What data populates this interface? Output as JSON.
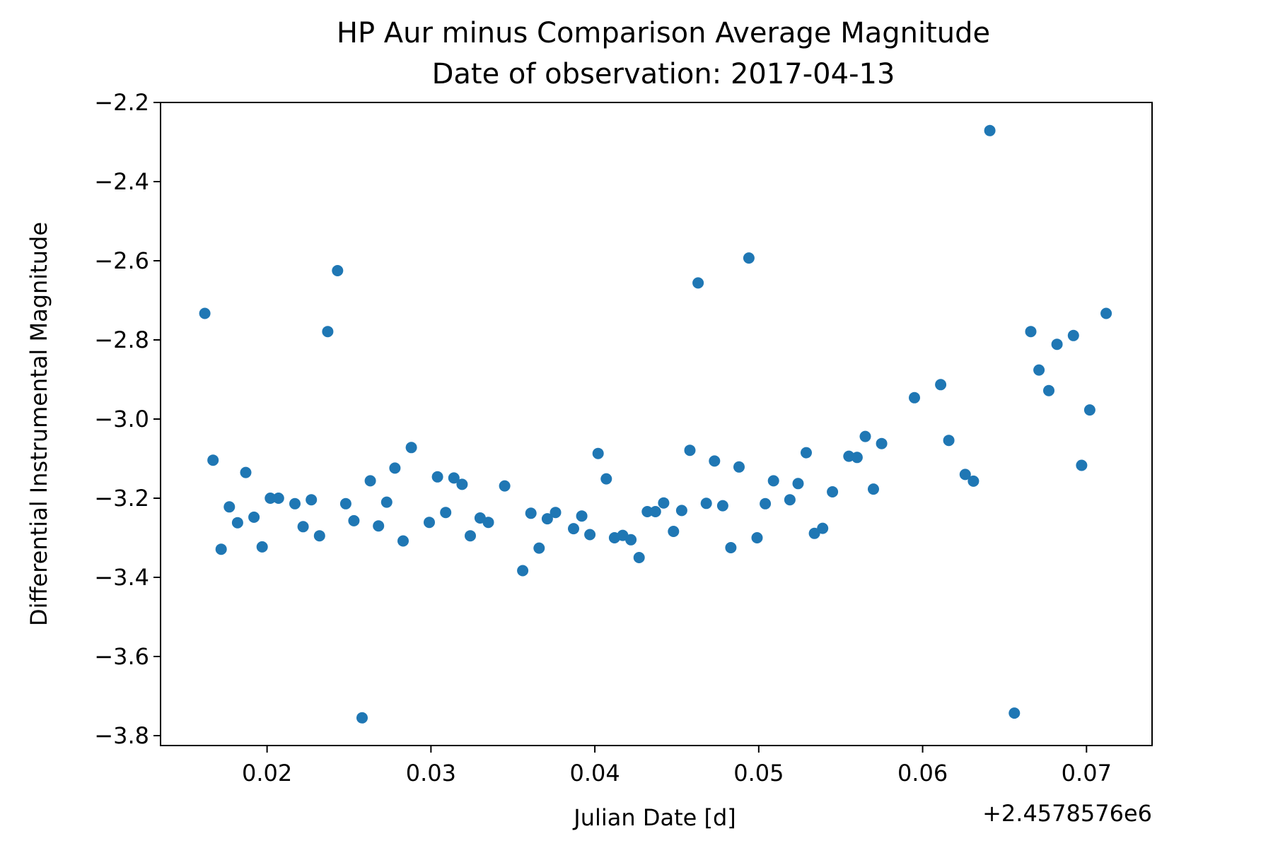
{
  "chart_data": {
    "type": "scatter",
    "title": "HP Aur minus Comparison Average Magnitude",
    "subtitle": "Date of observation: 2017-04-13",
    "xlabel": "Julian Date [d]",
    "ylabel": "Differential Instrumental Magnitude",
    "x_offset_label": "+2.4578576e6",
    "xlim": [
      0.0135,
      0.074
    ],
    "ylim": [
      -3.825,
      -2.2
    ],
    "xticks": [
      0.02,
      0.03,
      0.04,
      0.05,
      0.06,
      0.07
    ],
    "xtick_labels": [
      "0.02",
      "0.03",
      "0.04",
      "0.05",
      "0.06",
      "0.07"
    ],
    "yticks": [
      -2.2,
      -2.4,
      -2.6,
      -2.8,
      -3.0,
      -3.2,
      -3.4,
      -3.6,
      -3.8
    ],
    "ytick_labels": [
      "−2.2",
      "−2.4",
      "−2.6",
      "−2.8",
      "−3.0",
      "−3.2",
      "−3.4",
      "−3.6",
      "−3.8"
    ],
    "grid": false,
    "marker_color": "#1f77b4",
    "points": [
      [
        0.0162,
        -2.733
      ],
      [
        0.0167,
        -3.104
      ],
      [
        0.0172,
        -3.329
      ],
      [
        0.0177,
        -3.222
      ],
      [
        0.0182,
        -3.262
      ],
      [
        0.0187,
        -3.135
      ],
      [
        0.0192,
        -3.248
      ],
      [
        0.0197,
        -3.323
      ],
      [
        0.0202,
        -3.2
      ],
      [
        0.0207,
        -3.2
      ],
      [
        0.0217,
        -3.214
      ],
      [
        0.0222,
        -3.272
      ],
      [
        0.0227,
        -3.204
      ],
      [
        0.0232,
        -3.295
      ],
      [
        0.0237,
        -2.779
      ],
      [
        0.0243,
        -2.625
      ],
      [
        0.0248,
        -3.214
      ],
      [
        0.0253,
        -3.257
      ],
      [
        0.0258,
        -3.755
      ],
      [
        0.0263,
        -3.156
      ],
      [
        0.0268,
        -3.27
      ],
      [
        0.0273,
        -3.21
      ],
      [
        0.0278,
        -3.124
      ],
      [
        0.0283,
        -3.308
      ],
      [
        0.0288,
        -3.072
      ],
      [
        0.0299,
        -3.261
      ],
      [
        0.0304,
        -3.146
      ],
      [
        0.0309,
        -3.236
      ],
      [
        0.0314,
        -3.149
      ],
      [
        0.0319,
        -3.165
      ],
      [
        0.0324,
        -3.295
      ],
      [
        0.033,
        -3.25
      ],
      [
        0.0335,
        -3.261
      ],
      [
        0.0345,
        -3.169
      ],
      [
        0.0356,
        -3.383
      ],
      [
        0.0361,
        -3.238
      ],
      [
        0.0366,
        -3.326
      ],
      [
        0.0371,
        -3.252
      ],
      [
        0.0376,
        -3.236
      ],
      [
        0.0387,
        -3.277
      ],
      [
        0.0392,
        -3.245
      ],
      [
        0.0397,
        -3.292
      ],
      [
        0.0402,
        -3.087
      ],
      [
        0.0407,
        -3.151
      ],
      [
        0.0412,
        -3.3
      ],
      [
        0.0417,
        -3.294
      ],
      [
        0.0422,
        -3.305
      ],
      [
        0.0427,
        -3.35
      ],
      [
        0.0432,
        -3.234
      ],
      [
        0.0437,
        -3.234
      ],
      [
        0.0442,
        -3.212
      ],
      [
        0.0448,
        -3.284
      ],
      [
        0.0453,
        -3.231
      ],
      [
        0.0458,
        -3.079
      ],
      [
        0.0463,
        -2.656
      ],
      [
        0.0468,
        -3.213
      ],
      [
        0.0473,
        -3.106
      ],
      [
        0.0478,
        -3.219
      ],
      [
        0.0483,
        -3.325
      ],
      [
        0.0488,
        -3.121
      ],
      [
        0.0494,
        -2.593
      ],
      [
        0.0499,
        -3.3
      ],
      [
        0.0504,
        -3.214
      ],
      [
        0.0509,
        -3.156
      ],
      [
        0.0519,
        -3.204
      ],
      [
        0.0524,
        -3.163
      ],
      [
        0.0529,
        -3.085
      ],
      [
        0.0534,
        -3.289
      ],
      [
        0.0539,
        -3.276
      ],
      [
        0.0545,
        -3.184
      ],
      [
        0.0555,
        -3.094
      ],
      [
        0.056,
        -3.097
      ],
      [
        0.0565,
        -3.044
      ],
      [
        0.057,
        -3.177
      ],
      [
        0.0575,
        -3.062
      ],
      [
        0.0595,
        -2.946
      ],
      [
        0.0611,
        -2.913
      ],
      [
        0.0616,
        -3.054
      ],
      [
        0.0626,
        -3.14
      ],
      [
        0.0631,
        -3.157
      ],
      [
        0.0641,
        -2.271
      ],
      [
        0.0656,
        -3.743
      ],
      [
        0.0666,
        -2.779
      ],
      [
        0.0671,
        -2.876
      ],
      [
        0.0677,
        -2.928
      ],
      [
        0.0682,
        -2.811
      ],
      [
        0.0692,
        -2.789
      ],
      [
        0.0697,
        -3.117
      ],
      [
        0.0702,
        -2.977
      ],
      [
        0.0712,
        -2.733
      ]
    ]
  }
}
